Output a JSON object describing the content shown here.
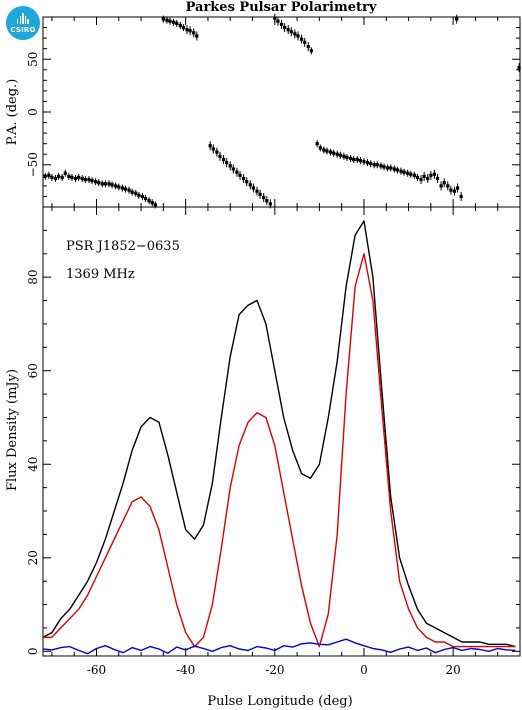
{
  "logo": {
    "text": "CSIRO",
    "color": "#1ea7d8"
  },
  "chart_data": [
    {
      "type": "scatter",
      "panel": "position-angle",
      "title": "Parkes Pulsar Polarimetry",
      "ylabel": "P.A. (deg.)",
      "xlim": [
        -72,
        35
      ],
      "ylim": [
        -90,
        90
      ],
      "yticks": [
        -50,
        0,
        50
      ],
      "xticks": [
        -60,
        -40,
        -20,
        0,
        20
      ],
      "series": [
        {
          "color": "#000000",
          "points": [
            [
              -71.5,
              -61
            ],
            [
              -70.7,
              -60
            ],
            [
              -70.0,
              -62
            ],
            [
              -69.2,
              -63
            ],
            [
              -68.5,
              -61
            ],
            [
              -67.7,
              -62
            ],
            [
              -67.0,
              -58
            ],
            [
              -66.2,
              -61
            ],
            [
              -65.5,
              -62
            ],
            [
              -64.7,
              -63
            ],
            [
              -64.0,
              -62
            ],
            [
              -63.2,
              -63
            ],
            [
              -62.5,
              -64
            ],
            [
              -61.7,
              -64
            ],
            [
              -61.0,
              -65
            ],
            [
              -60.2,
              -66
            ],
            [
              -59.5,
              -67
            ],
            [
              -58.7,
              -68
            ],
            [
              -58.0,
              -68
            ],
            [
              -57.2,
              -68
            ],
            [
              -56.5,
              -69
            ],
            [
              -55.7,
              -70
            ],
            [
              -55.0,
              -71
            ],
            [
              -54.2,
              -72
            ],
            [
              -53.5,
              -73
            ],
            [
              -52.7,
              -74
            ],
            [
              -52.0,
              -76
            ],
            [
              -51.2,
              -77
            ],
            [
              -50.5,
              -79
            ],
            [
              -49.7,
              -80
            ],
            [
              -49.0,
              -82
            ],
            [
              -48.2,
              -84
            ],
            [
              -47.5,
              -86
            ],
            [
              -46.8,
              -88
            ],
            [
              -45.0,
              88
            ],
            [
              -44.2,
              87
            ],
            [
              -43.5,
              86
            ],
            [
              -42.7,
              85
            ],
            [
              -42.0,
              84
            ],
            [
              -41.2,
              82
            ],
            [
              -40.5,
              80
            ],
            [
              -39.7,
              78
            ],
            [
              -39.0,
              77
            ],
            [
              -38.2,
              75
            ],
            [
              -37.5,
              72
            ],
            [
              -34.5,
              -32
            ],
            [
              -33.8,
              -35
            ],
            [
              -33.0,
              -38
            ],
            [
              -32.3,
              -42
            ],
            [
              -31.5,
              -45
            ],
            [
              -30.8,
              -48
            ],
            [
              -30.0,
              -51
            ],
            [
              -29.3,
              -54
            ],
            [
              -28.5,
              -57
            ],
            [
              -27.8,
              -60
            ],
            [
              -27.0,
              -63
            ],
            [
              -26.3,
              -66
            ],
            [
              -25.5,
              -69
            ],
            [
              -24.8,
              -72
            ],
            [
              -24.0,
              -75
            ],
            [
              -23.3,
              -78
            ],
            [
              -22.5,
              -81
            ],
            [
              -21.8,
              -84
            ],
            [
              -21.0,
              -87
            ],
            [
              -20.0,
              89
            ],
            [
              -19.3,
              86
            ],
            [
              -18.5,
              83
            ],
            [
              -17.8,
              80
            ],
            [
              -17.0,
              78
            ],
            [
              -16.3,
              76
            ],
            [
              -15.5,
              74
            ],
            [
              -14.8,
              72
            ],
            [
              -14.0,
              69
            ],
            [
              -13.3,
              66
            ],
            [
              -12.5,
              62
            ],
            [
              -11.8,
              58
            ],
            [
              -10.5,
              -30
            ],
            [
              -9.8,
              -34
            ],
            [
              -9.0,
              -36
            ],
            [
              -8.3,
              -37
            ],
            [
              -7.5,
              -38
            ],
            [
              -6.8,
              -39
            ],
            [
              -6.0,
              -40
            ],
            [
              -5.3,
              -41
            ],
            [
              -4.5,
              -42
            ],
            [
              -3.8,
              -43
            ],
            [
              -3.0,
              -44
            ],
            [
              -2.3,
              -45
            ],
            [
              -1.5,
              -45
            ],
            [
              -0.8,
              -46
            ],
            [
              0.0,
              -47
            ],
            [
              0.8,
              -48
            ],
            [
              1.5,
              -49
            ],
            [
              2.3,
              -50
            ],
            [
              3.0,
              -50
            ],
            [
              3.8,
              -51
            ],
            [
              4.5,
              -52
            ],
            [
              5.3,
              -53
            ],
            [
              6.0,
              -53
            ],
            [
              6.8,
              -54
            ],
            [
              7.5,
              -55
            ],
            [
              8.3,
              -56
            ],
            [
              9.0,
              -57
            ],
            [
              9.8,
              -58
            ],
            [
              10.5,
              -59
            ],
            [
              11.3,
              -60
            ],
            [
              12.0,
              -62
            ],
            [
              12.8,
              -64
            ],
            [
              13.5,
              -61
            ],
            [
              14.3,
              -63
            ],
            [
              15.0,
              -60
            ],
            [
              15.8,
              -59
            ],
            [
              16.5,
              -63
            ],
            [
              17.3,
              -70
            ],
            [
              18.0,
              -67
            ],
            [
              18.8,
              -70
            ],
            [
              19.5,
              -74
            ],
            [
              20.3,
              -75
            ],
            [
              21.0,
              -72
            ],
            [
              21.8,
              -80
            ],
            [
              20.8,
              88
            ],
            [
              34.8,
              42
            ]
          ]
        }
      ]
    },
    {
      "type": "line",
      "panel": "flux-density",
      "xlabel": "Pulse Longitude (deg)",
      "ylabel": "Flux Density (mJy)",
      "xlim": [
        -72,
        35
      ],
      "ylim": [
        -1,
        95
      ],
      "xticks": [
        -60,
        -40,
        -20,
        0,
        20
      ],
      "yticks": [
        0,
        20,
        40,
        60,
        80
      ],
      "annotations": [
        "PSR J1852−0635",
        "1369 MHz"
      ],
      "x": [
        -72,
        -70,
        -68,
        -66,
        -64,
        -62,
        -60,
        -58,
        -56,
        -54,
        -52,
        -50,
        -48,
        -46,
        -44,
        -42,
        -40,
        -38,
        -36,
        -34,
        -32,
        -30,
        -28,
        -26,
        -24,
        -22,
        -20,
        -18,
        -16,
        -14,
        -12,
        -10,
        -8,
        -6,
        -4,
        -2,
        0,
        2,
        4,
        6,
        8,
        10,
        12,
        14,
        16,
        18,
        20,
        22,
        24,
        26,
        28,
        30,
        32,
        34
      ],
      "series": [
        {
          "color": "#000000",
          "values": [
            3,
            4,
            7,
            9,
            12,
            15,
            19,
            24,
            30,
            36,
            43,
            48,
            50,
            49,
            42,
            34,
            26,
            24,
            27,
            36,
            50,
            63,
            72,
            74,
            75,
            70,
            60,
            50,
            43,
            38,
            37,
            40,
            50,
            62,
            78,
            89,
            92,
            80,
            56,
            33,
            20,
            14,
            9,
            6,
            5,
            4,
            3,
            2,
            2,
            2,
            1.5,
            1.5,
            1.5,
            1
          ]
        },
        {
          "color": "#dd0000",
          "values": [
            3,
            3,
            5,
            7,
            9,
            12,
            16,
            20,
            24,
            28,
            32,
            33,
            31,
            26,
            18,
            10,
            4,
            1,
            3,
            10,
            22,
            35,
            44,
            49,
            51,
            50,
            44,
            34,
            24,
            14,
            6,
            1,
            8,
            25,
            55,
            78,
            85,
            75,
            52,
            30,
            15,
            9,
            5,
            3,
            2,
            2,
            1,
            1,
            1,
            1,
            1,
            1,
            1,
            1
          ]
        },
        {
          "color": "#0000dd",
          "values": [
            0.5,
            0.3,
            0.8,
            1.0,
            0.2,
            -0.5,
            0.6,
            1.2,
            0.4,
            -0.3,
            0.8,
            0.2,
            1.0,
            0.5,
            -0.4,
            0.9,
            0.3,
            1.1,
            0.6,
            0.0,
            0.8,
            1.2,
            0.5,
            0.2,
            1.0,
            0.7,
            0.2,
            1.2,
            0.9,
            1.6,
            1.8,
            1.5,
            1.4,
            2.0,
            2.6,
            1.8,
            1.2,
            0.6,
            0.3,
            -0.2,
            0.5,
            0.9,
            0.2,
            0.7,
            -0.3,
            0.4,
            0.8,
            0.2,
            0.6,
            0.4,
            0.0,
            0.6,
            0.3,
            0.2
          ]
        }
      ]
    }
  ]
}
